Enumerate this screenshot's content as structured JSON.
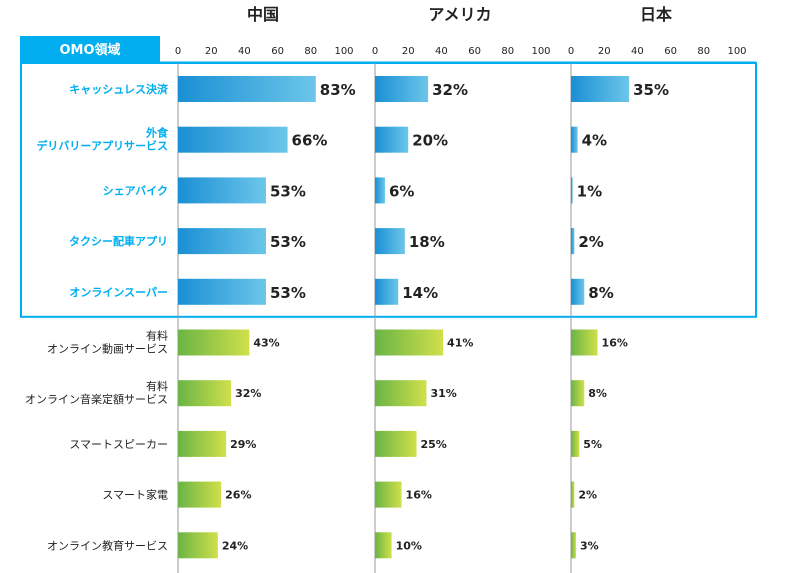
{
  "chart_data": {
    "type": "bar",
    "orientation": "horizontal",
    "header_label": "OMO領域",
    "panels": [
      "中国",
      "アメリカ",
      "日本"
    ],
    "xlim": [
      0,
      100
    ],
    "ticks": [
      "0",
      "20",
      "40",
      "60",
      "80",
      "100"
    ],
    "categories": [
      {
        "label": "キャッシュレス決済",
        "omo": true
      },
      {
        "label": "外食\nデリバリーアプリサービス",
        "omo": true
      },
      {
        "label": "シェアバイク",
        "omo": true
      },
      {
        "label": "タクシー配車アプリ",
        "omo": true
      },
      {
        "label": "オンラインスーパー",
        "omo": true
      },
      {
        "label": "有料\nオンライン動画サービス",
        "omo": false
      },
      {
        "label": "有料\nオンライン音楽定額サービス",
        "omo": false
      },
      {
        "label": "スマートスピーカー",
        "omo": false
      },
      {
        "label": "スマート家電",
        "omo": false
      },
      {
        "label": "オンライン教育サービス",
        "omo": false
      }
    ],
    "series": [
      {
        "name": "中国",
        "values": [
          83,
          66,
          53,
          53,
          53,
          43,
          32,
          29,
          26,
          24
        ]
      },
      {
        "name": "アメリカ",
        "values": [
          32,
          20,
          6,
          18,
          14,
          41,
          31,
          25,
          16,
          10
        ]
      },
      {
        "name": "日本",
        "values": [
          35,
          4,
          1,
          2,
          8,
          16,
          8,
          5,
          2,
          3
        ]
      }
    ],
    "value_suffix": "%",
    "colors": {
      "omo_accent": "#00aeef",
      "omo_bar_start": "#1a8fd4",
      "omo_bar_end": "#6cc6ea",
      "other_bar_start": "#6ab446",
      "other_bar_end": "#d0e04a",
      "axis": "#999999"
    }
  }
}
